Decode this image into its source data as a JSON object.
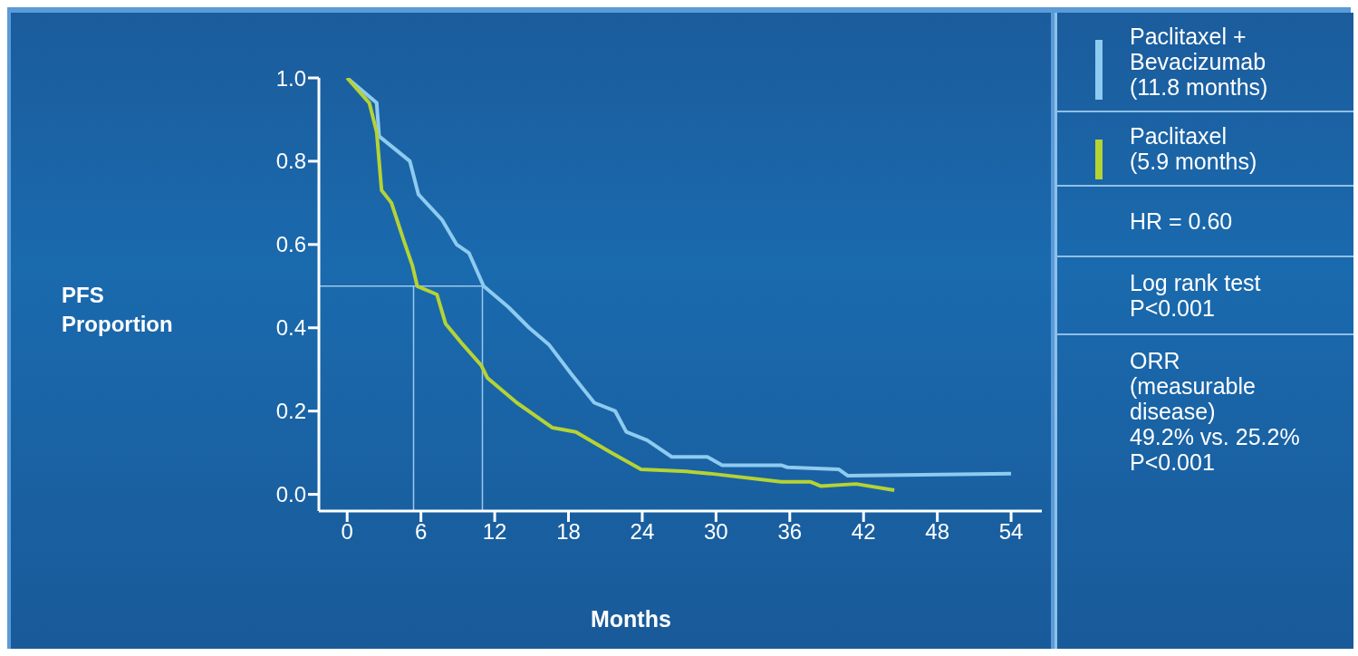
{
  "chart_data": {
    "type": "line",
    "xlabel": "Months",
    "ylabel": "PFS\nProportion",
    "xlim": [
      -2.3,
      56.5
    ],
    "xticks": [
      0,
      6,
      12,
      18,
      24,
      30,
      36,
      42,
      48,
      54
    ],
    "ylim": [
      -0.04,
      1.0
    ],
    "yticks": [
      {
        "value": 0,
        "label": "0.0"
      },
      {
        "value": 0.2,
        "label": "0.2"
      },
      {
        "value": 0.4,
        "label": "0.4"
      },
      {
        "value": 0.6,
        "label": "0.6"
      },
      {
        "value": 0.8,
        "label": "0.8"
      },
      {
        "value": 1,
        "label": "1.0"
      }
    ],
    "grid": false,
    "legend": "right",
    "marker": "none",
    "line_style": "solid",
    "series": [
      {
        "name": "Paclitaxel +\nBevacizumab\n(11.8 months)",
        "color": "#8ecbf0",
        "x": [
          0,
          2.4,
          2.6,
          5.1,
          5.8,
          7.7,
          8.9,
          9.9,
          11.1,
          13.1,
          14.8,
          16.4,
          18.2,
          20.1,
          21.8,
          22.7,
          24.4,
          26.4,
          29.3,
          30.5,
          35.3,
          35.8,
          40,
          40.7,
          54
        ],
        "values": [
          1.0,
          0.94,
          0.86,
          0.8,
          0.72,
          0.66,
          0.6,
          0.58,
          0.5,
          0.45,
          0.4,
          0.36,
          0.29,
          0.22,
          0.2,
          0.15,
          0.13,
          0.09,
          0.09,
          0.07,
          0.07,
          0.065,
          0.06,
          0.045,
          0.05
        ]
      },
      {
        "name": "Paclitaxel\n(5.9 months)",
        "color": "#b5d334",
        "x": [
          0,
          1.8,
          2.4,
          2.8,
          3.6,
          4.6,
          5.3,
          5.7,
          7.3,
          8,
          9.4,
          10.9,
          11.4,
          13.8,
          16.7,
          18.6,
          21.5,
          23.9,
          27.6,
          29.5,
          35.3,
          37.7,
          38.5,
          41.4,
          44.5
        ],
        "values": [
          1.0,
          0.94,
          0.87,
          0.73,
          0.7,
          0.61,
          0.55,
          0.5,
          0.48,
          0.41,
          0.36,
          0.31,
          0.28,
          0.22,
          0.16,
          0.15,
          0.1,
          0.06,
          0.055,
          0.05,
          0.03,
          0.03,
          0.02,
          0.025,
          0.01
        ]
      }
    ],
    "ref_lines": [
      {
        "axis": "y",
        "value": 0.5,
        "color": "#9cc8ec"
      },
      {
        "axis": "x",
        "value": 5.4,
        "color": "#9cc8ec"
      },
      {
        "axis": "x",
        "value": 11.0,
        "color": "#9cc8ec"
      }
    ],
    "annotations": [
      "HR = 0.60",
      "Log rank test\nP<0.001",
      "ORR\n(measurable\ndisease)\n49.2% vs. 25.2%\nP<0.001"
    ]
  }
}
